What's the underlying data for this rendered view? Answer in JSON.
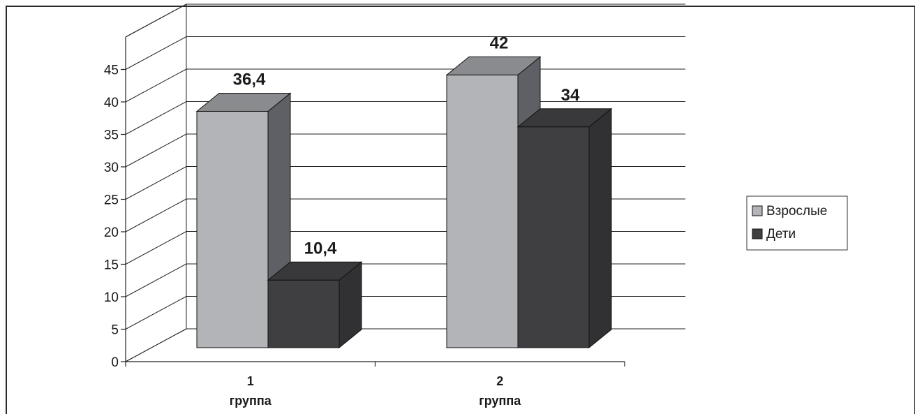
{
  "chart_data": {
    "type": "bar",
    "style": "3d-clustered-column",
    "categories": [
      [
        "1",
        "группа"
      ],
      [
        "2",
        "группа"
      ]
    ],
    "series": [
      {
        "name": "Взрослые",
        "values": [
          36.4,
          42
        ],
        "labels": [
          "36,4",
          "42"
        ],
        "color": "#b3b4b7"
      },
      {
        "name": "Дети",
        "values": [
          10.4,
          34
        ],
        "labels": [
          "10,4",
          "34"
        ],
        "color": "#3f3f41"
      }
    ],
    "yticks": [
      "0",
      "5",
      "10",
      "15",
      "20",
      "25",
      "30",
      "35",
      "40",
      "45"
    ],
    "ylim": [
      0,
      50
    ],
    "grid": true,
    "legend_position": "right"
  }
}
